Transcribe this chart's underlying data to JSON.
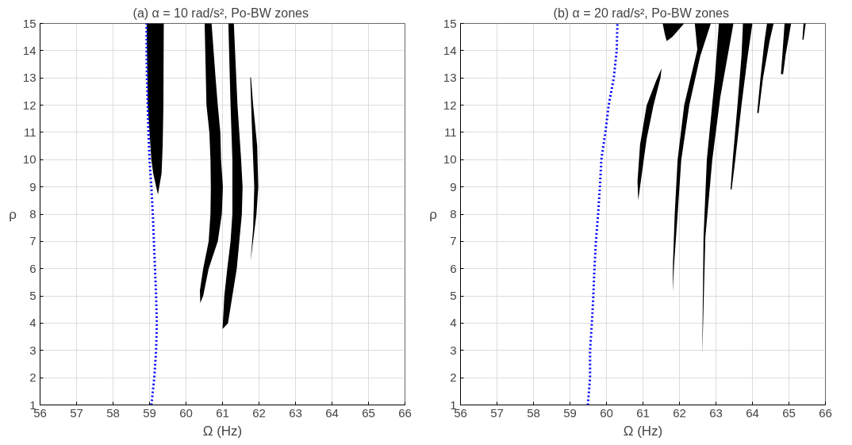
{
  "chart_data": [
    {
      "type": "area",
      "title": "(a)  α = 10 rad/s², Po-BW zones",
      "xlabel": "Ω (Hz)",
      "ylabel": "ρ",
      "xlim": [
        56,
        66
      ],
      "ylim": [
        1,
        15
      ],
      "xticks": [
        56,
        57,
        58,
        59,
        60,
        61,
        62,
        63,
        64,
        65,
        66
      ],
      "yticks": [
        1,
        2,
        3,
        4,
        5,
        6,
        7,
        8,
        9,
        10,
        11,
        12,
        13,
        14,
        15
      ],
      "grid": true,
      "series": [
        {
          "color": "#000000",
          "x": [
            58.92,
            58.95,
            59.0,
            59.05,
            59.1,
            59.23,
            59.33,
            59.36,
            59.38,
            59.39
          ],
          "values": [
            15,
            12,
            11,
            10,
            9.5,
            8.72,
            9.5,
            10.5,
            12,
            15
          ]
        },
        {
          "color": "#000000",
          "x": [
            60.51,
            60.56,
            60.64,
            60.67,
            60.68,
            60.67,
            60.62,
            60.47,
            60.38,
            60.39,
            60.47,
            60.62,
            60.87,
            60.98,
            61.01,
            60.96,
            60.94,
            60.87,
            60.81,
            60.7
          ],
          "values": [
            15,
            12,
            11,
            10,
            9,
            8,
            7,
            6,
            5.2,
            4.74,
            5,
            6,
            7,
            8,
            9,
            10,
            11,
            12,
            13,
            15
          ]
        },
        {
          "color": "#000000",
          "x": [
            61.16,
            61.22,
            61.27,
            61.27,
            61.22,
            61.13,
            61.05,
            61.0,
            61.15,
            61.27,
            61.39,
            61.46,
            61.53,
            61.55,
            61.51,
            61.41,
            61.31
          ],
          "values": [
            15,
            12,
            10,
            8,
            7,
            6,
            5,
            3.79,
            4,
            5,
            6,
            7,
            8,
            9,
            10,
            12,
            15
          ]
        },
        {
          "color": "#000000",
          "x": [
            61.76,
            61.81,
            61.87,
            61.84,
            61.77,
            61.8,
            61.93,
            61.98,
            61.95,
            61.84,
            61.78
          ],
          "values": [
            13.02,
            11,
            9,
            7.5,
            6.28,
            6.6,
            8,
            9,
            10.5,
            12,
            13.02
          ]
        },
        {
          "type": "line",
          "color": "#0000ff",
          "line_style": "dotted",
          "x": [
            59.05,
            59.13,
            59.18,
            59.2,
            59.18,
            59.15,
            59.12,
            59.09,
            59.05,
            59.0,
            58.97,
            58.95,
            58.93,
            58.92,
            58.92
          ],
          "values": [
            1,
            2,
            3,
            4,
            5,
            6,
            7,
            8,
            9,
            10,
            11,
            12,
            13,
            14,
            15
          ]
        }
      ]
    },
    {
      "type": "area",
      "title": "(b)  α = 20 rad/s², Po-BW zones",
      "xlabel": "Ω (Hz)",
      "ylabel": "ρ",
      "xlim": [
        56,
        66
      ],
      "ylim": [
        1,
        15
      ],
      "xticks": [
        56,
        57,
        58,
        59,
        60,
        61,
        62,
        63,
        64,
        65,
        66
      ],
      "yticks": [
        1,
        2,
        3,
        4,
        5,
        6,
        7,
        8,
        9,
        10,
        11,
        12,
        13,
        14,
        15
      ],
      "grid": true,
      "series": [
        {
          "color": "#000000",
          "x": [
            60.87,
            60.85,
            60.92,
            61.1,
            61.36,
            61.51,
            61.48,
            61.29,
            61.1,
            60.94
          ],
          "values": [
            8.51,
            9.21,
            10.55,
            11.99,
            12.9,
            13.35,
            13.0,
            12.0,
            10.76,
            9.2
          ]
        },
        {
          "color": "#000000",
          "x": [
            61.54,
            62.13,
            61.8,
            61.65,
            61.6
          ],
          "values": [
            15,
            15,
            14.5,
            14.35,
            14.6
          ]
        },
        {
          "color": "#000000",
          "x": [
            62.42,
            62.49,
            62.13,
            61.95,
            61.87,
            61.82,
            61.82,
            61.85,
            61.95,
            62.05,
            62.27,
            62.57,
            62.86
          ],
          "values": [
            15,
            14.04,
            12.0,
            10,
            8,
            6.1,
            5.15,
            6.1,
            8,
            10,
            12,
            13.8,
            15
          ]
        },
        {
          "color": "#000000",
          "x": [
            63.08,
            62.97,
            62.75,
            62.66,
            62.63,
            62.62,
            62.64,
            62.71,
            62.9,
            63.12,
            63.48
          ],
          "values": [
            15,
            13,
            10,
            7.16,
            3.56,
            2.84,
            3.56,
            7.16,
            10,
            12.3,
            15
          ]
        },
        {
          "color": "#000000",
          "x": [
            63.74,
            63.7,
            63.59,
            63.46,
            63.4,
            63.43,
            63.53,
            63.7,
            63.87,
            64.0
          ],
          "values": [
            15,
            13.8,
            12,
            10,
            8.91,
            8.91,
            10,
            12,
            13.8,
            15
          ]
        },
        {
          "color": "#000000",
          "x": [
            64.4,
            64.33,
            64.22,
            64.13,
            64.17,
            64.29,
            64.47,
            64.58
          ],
          "values": [
            15,
            14.35,
            13,
            11.71,
            11.71,
            13,
            14.35,
            15
          ]
        },
        {
          "color": "#000000",
          "x": [
            64.88,
            64.82,
            64.78,
            64.84,
            64.91,
            65.06
          ],
          "values": [
            15,
            13.84,
            13.14,
            13.14,
            13.84,
            15
          ]
        },
        {
          "color": "#000000",
          "x": [
            65.4,
            65.37,
            65.4,
            65.46
          ],
          "values": [
            15,
            14.4,
            14.4,
            15
          ]
        },
        {
          "type": "line",
          "color": "#0000ff",
          "line_style": "dotted",
          "x": [
            59.49,
            59.55,
            59.55,
            59.6,
            59.64,
            59.67,
            59.71,
            59.77,
            59.82,
            59.86,
            59.97,
            60.06,
            60.2,
            60.28,
            60.3
          ],
          "values": [
            1,
            2,
            3,
            4,
            5,
            6,
            7,
            8,
            9,
            10,
            11,
            12,
            13,
            14,
            15
          ]
        }
      ]
    }
  ]
}
